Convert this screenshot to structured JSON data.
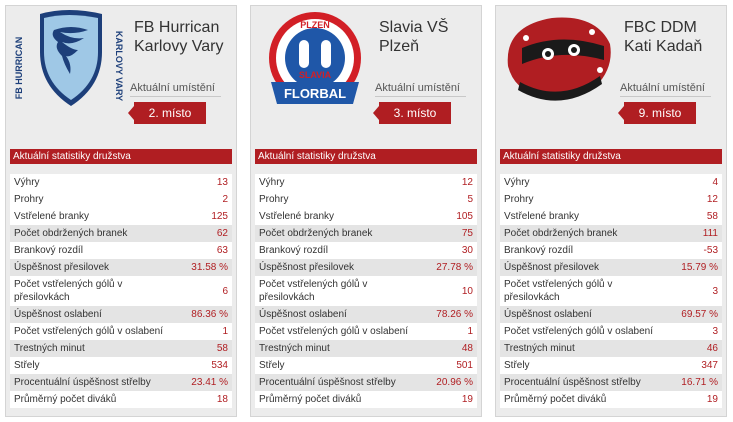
{
  "teams": [
    {
      "name": "FB Hurrican Karlovy Vary",
      "logo": "fb-hurrican-logo",
      "location_label": "Aktuální umístění",
      "rank": "2. místo",
      "stats_header": "Aktuální statistiky družstva",
      "stats": [
        {
          "label": "Výhry",
          "value": "13"
        },
        {
          "label": "Prohry",
          "value": "2"
        },
        {
          "label": "Vstřelené branky",
          "value": "125"
        },
        {
          "label": "Počet obdržených branek",
          "value": "62"
        },
        {
          "label": "Brankový rozdíl",
          "value": "63"
        },
        {
          "label": "Úspěšnost přesilovek",
          "value": "31.58 %"
        },
        {
          "label": "Počet vstřelených gólů v přesilovkách",
          "value": "6"
        },
        {
          "label": "Úspěšnost oslabení",
          "value": "86.36 %"
        },
        {
          "label": "Počet vstřelených gólů v oslabení",
          "value": "1"
        },
        {
          "label": "Trestných minut",
          "value": "58"
        },
        {
          "label": "Střely",
          "value": "534"
        },
        {
          "label": "Procentuální úspěšnost střelby",
          "value": "23.41 %"
        },
        {
          "label": "Průměrný počet diváků",
          "value": "18"
        }
      ]
    },
    {
      "name": "Slavia VŠ Plzeň",
      "logo": "slavia-plzen-florbal-logo",
      "location_label": "Aktuální umístění",
      "rank": "3. místo",
      "stats_header": "Aktuální statistiky družstva",
      "stats": [
        {
          "label": "Výhry",
          "value": "12"
        },
        {
          "label": "Prohry",
          "value": "5"
        },
        {
          "label": "Vstřelené branky",
          "value": "105"
        },
        {
          "label": "Počet obdržených branek",
          "value": "75"
        },
        {
          "label": "Brankový rozdíl",
          "value": "30"
        },
        {
          "label": "Úspěšnost přesilovek",
          "value": "27.78 %"
        },
        {
          "label": "Počet vstřelených gólů v přesilovkách",
          "value": "10"
        },
        {
          "label": "Úspěšnost oslabení",
          "value": "78.26 %"
        },
        {
          "label": "Počet vstřelených gólů v oslabení",
          "value": "1"
        },
        {
          "label": "Trestných minut",
          "value": "48"
        },
        {
          "label": "Střely",
          "value": "501"
        },
        {
          "label": "Procentuální úspěšnost střelby",
          "value": "20.96 %"
        },
        {
          "label": "Průměrný počet diváků",
          "value": "19"
        }
      ]
    },
    {
      "name": "FBC DDM Kati Kadaň",
      "logo": "fbc-kadan-logo",
      "location_label": "Aktuální umístění",
      "rank": "9. místo",
      "stats_header": "Aktuální statistiky družstva",
      "stats": [
        {
          "label": "Výhry",
          "value": "4"
        },
        {
          "label": "Prohry",
          "value": "12"
        },
        {
          "label": "Vstřelené branky",
          "value": "58"
        },
        {
          "label": "Počet obdržených branek",
          "value": "111"
        },
        {
          "label": "Brankový rozdíl",
          "value": "-53"
        },
        {
          "label": "Úspěšnost přesilovek",
          "value": "15.79 %"
        },
        {
          "label": "Počet vstřelených gólů v přesilovkách",
          "value": "3"
        },
        {
          "label": "Úspěšnost oslabení",
          "value": "69.57 %"
        },
        {
          "label": "Počet vstřelených gólů v oslabení",
          "value": "3"
        },
        {
          "label": "Trestných minut",
          "value": "46"
        },
        {
          "label": "Střely",
          "value": "347"
        },
        {
          "label": "Procentuální úspěšnost střelby",
          "value": "16.71 %"
        },
        {
          "label": "Průměrný počet diváků",
          "value": "19"
        }
      ]
    }
  ],
  "logo_text": {
    "hurrican_top": "FB HURRICAN",
    "hurrican_side": "KARLOVY VARY",
    "slavia_top": "PLZEŇ",
    "slavia_ring": "SLAVIA",
    "slavia_bottom": "FLORBAL"
  },
  "colors": {
    "accent": "#b01e22",
    "card_bg": "#ececec",
    "alt_row": "#e4e4e4"
  }
}
